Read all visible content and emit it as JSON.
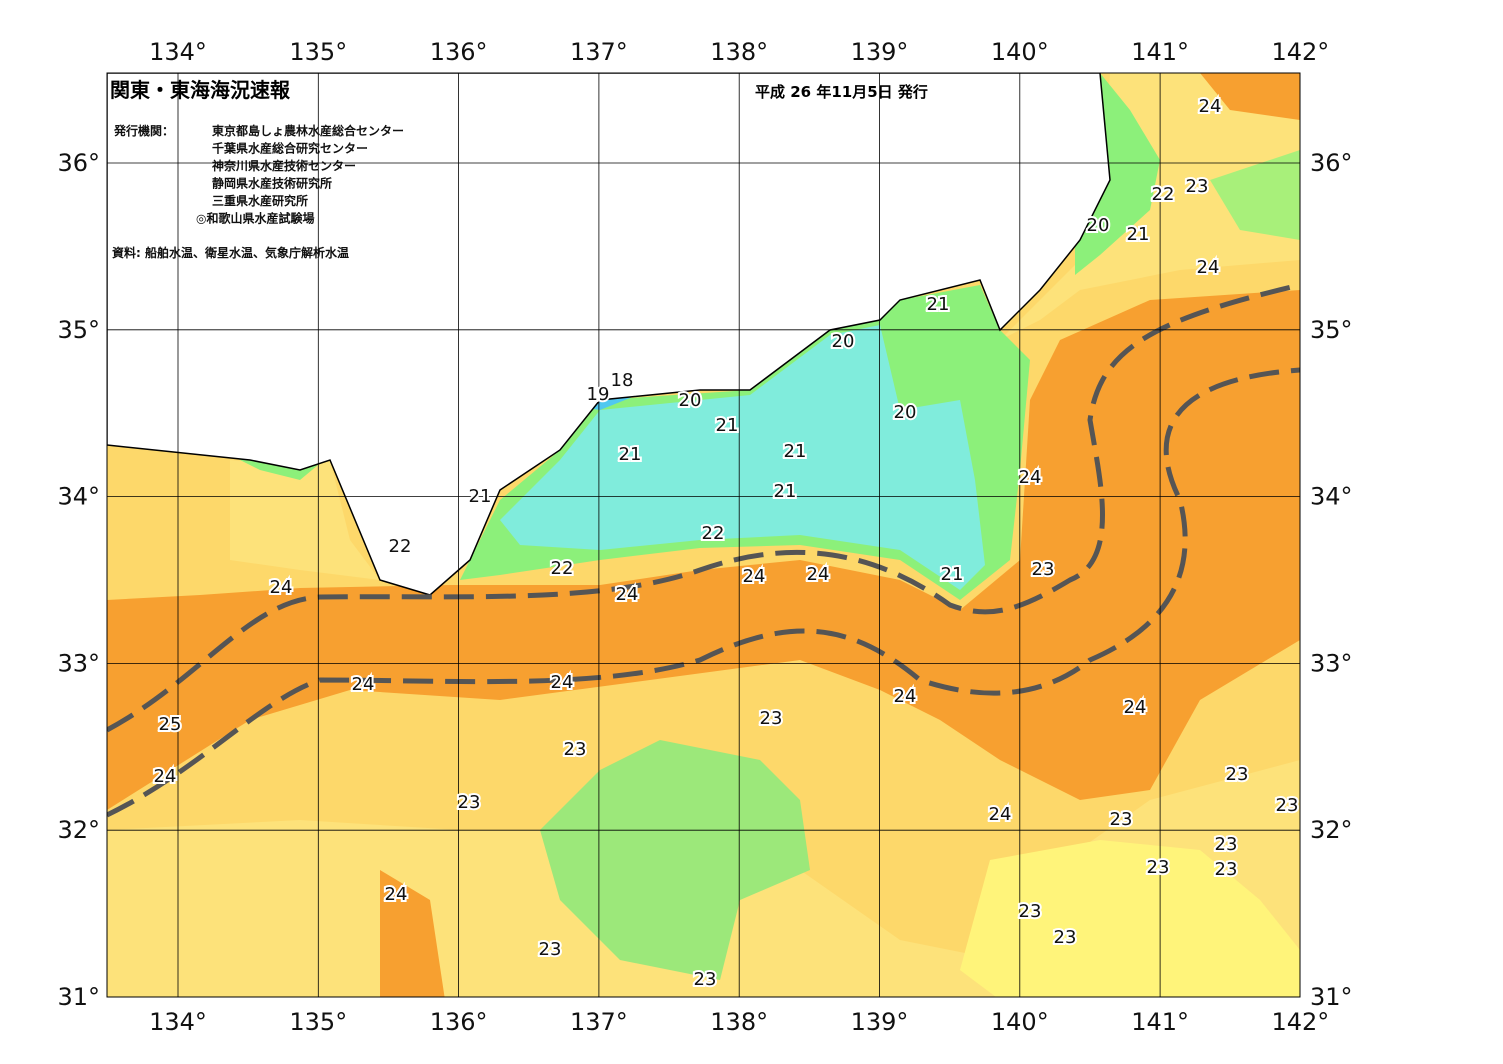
{
  "map": {
    "title": "関東・東海海況速報",
    "issued": "平成 26 年11月5日 発行",
    "issuers_label": "発行機関：",
    "issuers": [
      "東京都島しょ農林水産総合センター",
      "千葉県水産総合研究センター",
      "神奈川県水産技術センター",
      "静岡県水産技術研究所",
      "三重県水産研究所",
      "◎和歌山県水産試験場"
    ],
    "source": "資料: 船舶水温、衛星水温、気象庁解析水温",
    "lon_labels": [
      "134°",
      "135°",
      "136°",
      "137°",
      "138°",
      "139°",
      "140°",
      "141°",
      "142°"
    ],
    "lat_labels": [
      "31°",
      "32°",
      "33°",
      "34°",
      "35°",
      "36°"
    ],
    "contour_labels": [
      24,
      23,
      22,
      20,
      21,
      24,
      21,
      20,
      18,
      19,
      20,
      21,
      20,
      21,
      21,
      21,
      24,
      21,
      22,
      22,
      22,
      21,
      23,
      24,
      24,
      24,
      24,
      24,
      24,
      24,
      24,
      25,
      23,
      23,
      24,
      23,
      23,
      23,
      24,
      23,
      23,
      23,
      23,
      24,
      23,
      23,
      23,
      23
    ]
  }
}
